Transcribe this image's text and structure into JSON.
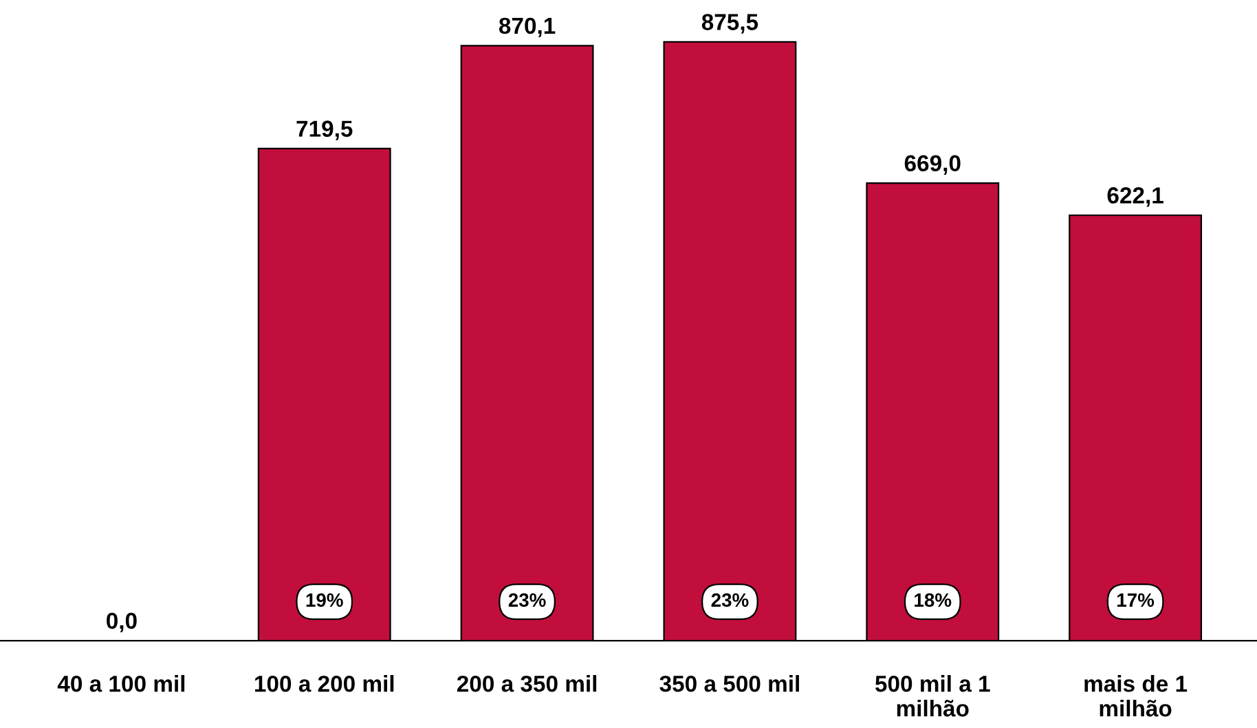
{
  "chart_data": {
    "type": "bar",
    "categories": [
      "40 a 100 mil",
      "100 a 200 mil",
      "200 a 350 mil",
      "350 a 500 mil",
      "500 mil a 1 milhão",
      "mais de 1 milhão"
    ],
    "values": [
      0,
      719.5,
      870.1,
      875.5,
      669.0,
      622.1
    ],
    "value_labels": [
      "0,0",
      "719,5",
      "870,1",
      "875,5",
      "669,0",
      "622,1"
    ],
    "color": "#c20e3c",
    "annotations": [
      {
        "text": "19%",
        "x": "100 a 200 mil"
      },
      {
        "text": "23%",
        "x": "200 a 350 mil"
      },
      {
        "text": "23%",
        "x": "350 a 500 mil"
      },
      {
        "text": "18%",
        "x": "500 mil a 1 milhão"
      },
      {
        "text": "17%",
        "x": "mais de 1 milhão"
      }
    ],
    "grid": false
  }
}
